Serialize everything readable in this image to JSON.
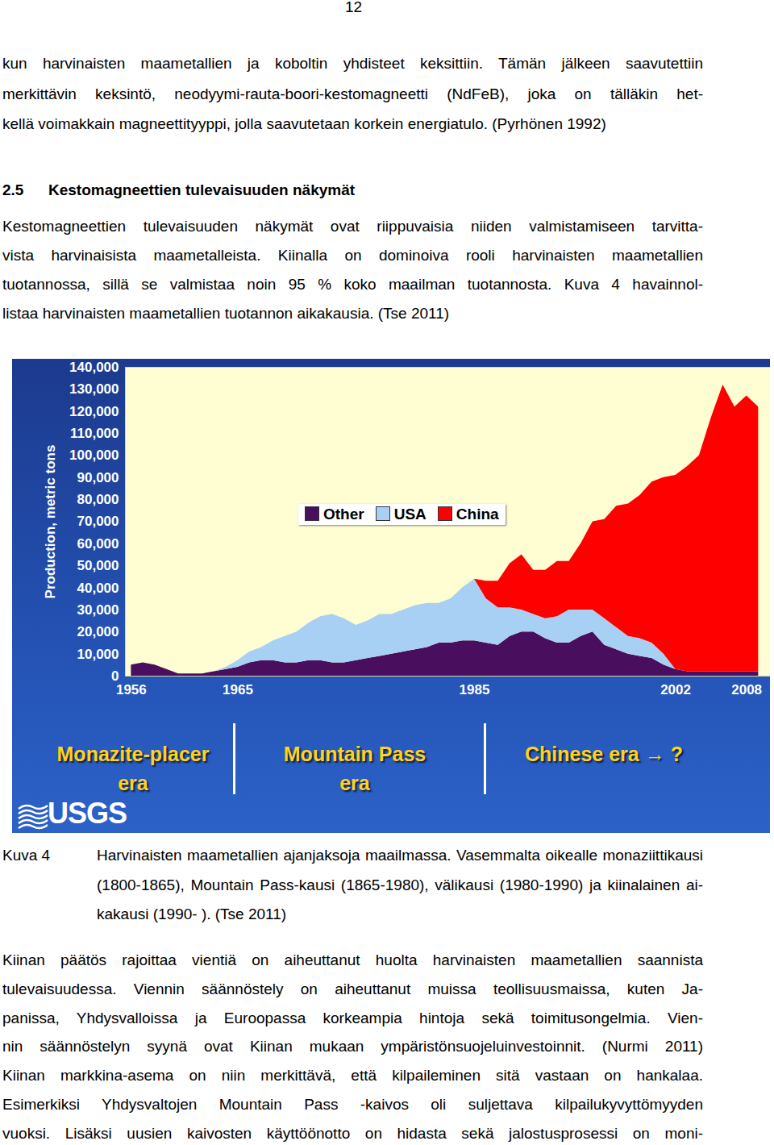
{
  "document": {
    "page_number": "12",
    "top_paragraph": [
      "kun harvinaisten maametallien ja koboltin yhdisteet keksittiin. Tämän jälkeen saavutettiin",
      "merkittävin keksintö, neodyymi-rauta-boori-kestomagneetti (NdFeB), joka on tälläkin het-",
      "kellä voimakkain magneettityyppi, jolla saavutetaan korkein energiatulo. (Pyrhönen 1992)"
    ],
    "heading": {
      "number": "2.5",
      "text": "Kestomagneettien tulevaisuuden näkymät"
    },
    "intro_paragraph": [
      "Kestomagneettien tulevaisuuden näkymät ovat riippuvaisia niiden valmistamiseen tarvitta-",
      "vista harvinaisista maametalleista. Kiinalla on dominoiva rooli harvinaisten maametallien",
      "tuotannossa, sillä se valmistaa noin 95 % koko maailman tuotannosta. Kuva 4 havainnol-",
      "listaa harvinaisten maametallien tuotannon aikakausia. (Tse 2011)"
    ],
    "caption": {
      "label": "Kuva 4",
      "lines": [
        "Harvinaisten maametallien ajanjaksoja maailmassa. Vasemmalta oikealle monaziittikausi",
        "(1800-1865), Mountain Pass-kausi (1865-1980), välikausi (1980-1990) ja kiinalainen ai-",
        "kakausi (1990- ). (Tse 2011)"
      ]
    },
    "closing_paragraph": [
      "Kiinan päätös rajoittaa vientiä on aiheuttanut huolta harvinaisten maametallien saannista",
      "tulevaisuudessa. Viennin säännöstely on aiheuttanut muissa teollisuusmaissa, kuten Ja-",
      "panissa, Yhdysvalloissa ja Euroopassa korkeampia hintoja sekä toimitusongelmia. Vien-",
      "nin säännöstelyn syynä ovat Kiinan mukaan ympäristönsuojeluinvestoinnit. (Nurmi 2011)",
      "Kiinan markkina-asema on niin merkittävä, että kilpaileminen sitä vastaan on hankalaa.",
      "Esimerkiksi Yhdysvaltojen Mountain Pass -kaivos oli suljettava kilpailukyvyttömyyden",
      "vuoksi. Lisäksi uusien kaivosten käyttöönotto on hidasta sekä jalostusprosessi on moni-"
    ]
  },
  "chart_data": {
    "type": "area",
    "stacked": true,
    "grid": false,
    "legend": "center",
    "ylabel": "Production, metric tons",
    "x": [
      1956,
      1957,
      1958,
      1959,
      1960,
      1961,
      1962,
      1963,
      1964,
      1965,
      1966,
      1967,
      1968,
      1969,
      1970,
      1971,
      1972,
      1973,
      1974,
      1975,
      1976,
      1977,
      1978,
      1979,
      1980,
      1981,
      1982,
      1983,
      1984,
      1985,
      1986,
      1987,
      1988,
      1989,
      1990,
      1991,
      1992,
      1993,
      1994,
      1995,
      1996,
      1997,
      1998,
      1999,
      2000,
      2001,
      2002,
      2003,
      2004,
      2005,
      2006,
      2007,
      2008,
      2009
    ],
    "xlim": [
      1955.5,
      2010
    ],
    "xticks": [
      1956,
      1965,
      1985,
      2002,
      2008
    ],
    "ylim": [
      0,
      140000
    ],
    "yticks": [
      0,
      {
        "value": 10000,
        "label": "10,000"
      },
      {
        "value": 20000,
        "label": "20,000"
      },
      {
        "value": 30000,
        "label": "30,000"
      },
      {
        "value": 40000,
        "label": "40,000"
      },
      {
        "value": 50000,
        "label": "50,000"
      },
      {
        "value": 60000,
        "label": "60,000"
      },
      {
        "value": 70000,
        "label": "70,000"
      },
      {
        "value": 80000,
        "label": "80,000"
      },
      {
        "value": 90000,
        "label": "90,000"
      },
      {
        "value": 100000,
        "label": "100,000"
      },
      {
        "value": 110000,
        "label": "110,000"
      },
      {
        "value": 120000,
        "label": "120,000"
      },
      {
        "value": 130000,
        "label": "130,000"
      },
      {
        "value": 140000,
        "label": "140,000"
      }
    ],
    "series": [
      {
        "name": "Other",
        "color": "#4a0e5e",
        "values": [
          5000,
          6000,
          5000,
          3000,
          1000,
          1000,
          1000,
          2000,
          3000,
          4000,
          6000,
          7000,
          7000,
          6000,
          6000,
          7000,
          7000,
          6000,
          6000,
          7000,
          8000,
          9000,
          10000,
          11000,
          12000,
          13000,
          15000,
          15000,
          16000,
          16000,
          15000,
          14000,
          18000,
          20000,
          20000,
          17000,
          15000,
          15000,
          18000,
          20000,
          14000,
          12000,
          10000,
          9000,
          8000,
          5000,
          3000,
          2000,
          2000,
          2000,
          2000,
          2000,
          2000,
          2000
        ]
      },
      {
        "name": "USA",
        "color": "#a8d0f4",
        "values": [
          0,
          0,
          0,
          0,
          0,
          0,
          0,
          0,
          1000,
          3000,
          5000,
          6000,
          9000,
          12000,
          14000,
          17000,
          20000,
          22000,
          20000,
          16000,
          17000,
          19000,
          18000,
          19000,
          20000,
          20000,
          18000,
          20000,
          24000,
          28000,
          20000,
          17000,
          13000,
          10000,
          8000,
          9000,
          12000,
          15000,
          12000,
          10000,
          12000,
          10000,
          8000,
          8000,
          7000,
          5000,
          0,
          0,
          0,
          0,
          0,
          0,
          0,
          0
        ]
      },
      {
        "name": "China",
        "color": "#ff0000",
        "values": [
          0,
          0,
          0,
          0,
          0,
          0,
          0,
          0,
          0,
          0,
          0,
          0,
          0,
          0,
          0,
          0,
          0,
          0,
          0,
          0,
          0,
          0,
          0,
          0,
          0,
          0,
          0,
          0,
          0,
          0,
          8000,
          12000,
          20000,
          25000,
          20000,
          22000,
          25000,
          22000,
          30000,
          40000,
          45000,
          55000,
          60000,
          65000,
          73000,
          80000,
          88000,
          93000,
          98000,
          115000,
          130000,
          120000,
          125000,
          120000
        ]
      }
    ],
    "annotations": [
      [
        "Monazite-placer",
        "era"
      ],
      [
        "Mountain Pass",
        "era"
      ],
      [
        "Chinese era → ?"
      ]
    ],
    "logo": "USGS"
  }
}
